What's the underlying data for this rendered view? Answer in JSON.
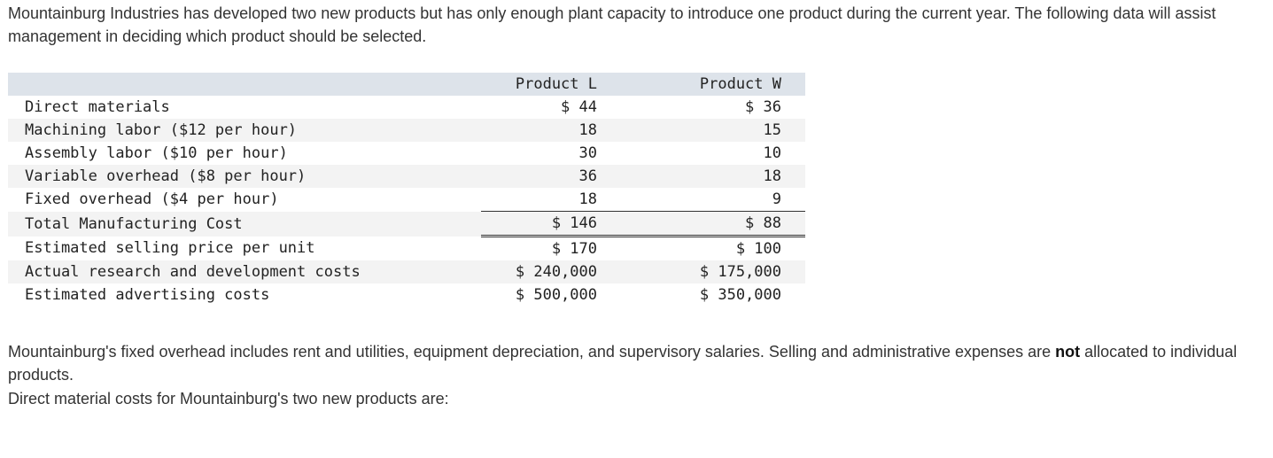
{
  "intro": "Mountainburg Industries has developed two new products but has only enough plant capacity to introduce one product during the current year. The following data will assist management in deciding which product should be selected.",
  "table": {
    "headers": [
      "",
      "Product L",
      "Product W"
    ],
    "rows": [
      {
        "label": "Direct materials",
        "l": "$ 44",
        "w": "$ 36"
      },
      {
        "label": "Machining labor ($12 per hour)",
        "l": "18",
        "w": "15"
      },
      {
        "label": "Assembly labor ($10 per hour)",
        "l": "30",
        "w": "10"
      },
      {
        "label": "Variable overhead ($8 per hour)",
        "l": "36",
        "w": "18"
      },
      {
        "label": "Fixed overhead ($4 per hour)",
        "l": "18",
        "w": "9"
      },
      {
        "label": "Total Manufacturing Cost",
        "l": "$ 146",
        "w": "$ 88"
      },
      {
        "label": "Estimated selling price per unit",
        "l": "$ 170",
        "w": "$ 100"
      },
      {
        "label": "Actual research and development costs",
        "l": "$ 240,000",
        "w": "$ 175,000"
      },
      {
        "label": "Estimated advertising costs",
        "l": "$ 500,000",
        "w": "$ 350,000"
      }
    ]
  },
  "para2": {
    "before": "Mountainburg's fixed overhead includes rent and utilities, equipment depreciation, and supervisory salaries. Selling and administrative expenses are ",
    "bold": "not",
    "after": " allocated to individual products."
  },
  "para3": "Direct material costs for Mountainburg's two new products are:"
}
